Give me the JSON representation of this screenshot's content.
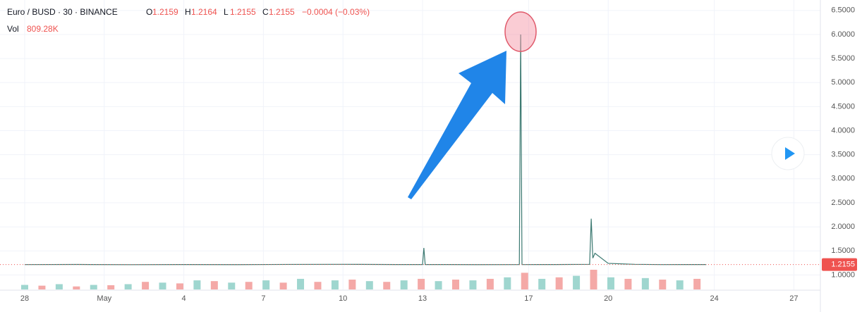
{
  "chart_data": {
    "type": "line",
    "title": "Euro / BUSD · 30 · BINANCE",
    "ohlc": [
      {
        "label": "O",
        "value": "1.2159"
      },
      {
        "label": "H",
        "value": "1.2164"
      },
      {
        "label": "L",
        "value": "1.2155"
      },
      {
        "label": "C",
        "value": "1.2155"
      }
    ],
    "change": "−0.0004 (−0.03%)",
    "volume_label": "Vol",
    "volume_value": "809.28K",
    "x": [
      0,
      2,
      4,
      6,
      8,
      10,
      12,
      14,
      15,
      15.05,
      15.1,
      17,
      18.65,
      18.7,
      18.75,
      20,
      21.3,
      21.36,
      21.42,
      21.5,
      22,
      23,
      24,
      25,
      25.7
    ],
    "series": [
      {
        "name": "Euro / BUSD",
        "color": "#3d7a72",
        "values": [
          1.215,
          1.217,
          1.213,
          1.216,
          1.214,
          1.218,
          1.22,
          1.216,
          1.216,
          1.56,
          1.216,
          1.214,
          1.215,
          6.0,
          1.215,
          1.216,
          1.22,
          2.17,
          1.35,
          1.45,
          1.24,
          1.22,
          1.215,
          1.216,
          1.2155
        ]
      }
    ],
    "volume": {
      "colors": [
        "#9fd6cf",
        "#f4a9a7"
      ],
      "x": [
        0,
        0.65,
        1.3,
        1.95,
        2.6,
        3.25,
        3.9,
        4.55,
        5.2,
        5.85,
        6.5,
        7.15,
        7.8,
        8.45,
        9.1,
        9.75,
        10.4,
        11.05,
        11.7,
        12.35,
        13,
        13.65,
        14.3,
        14.95,
        15.6,
        16.25,
        16.9,
        17.55,
        18.2,
        18.85,
        19.5,
        20.15,
        20.8,
        21.45,
        22.1,
        22.75,
        23.4,
        24.05,
        24.7,
        25.35
      ],
      "values": [
        300,
        250,
        350,
        200,
        300,
        280,
        350,
        500,
        450,
        400,
        600,
        550,
        450,
        500,
        600,
        450,
        700,
        500,
        600,
        650,
        550,
        500,
        600,
        700,
        550,
        650,
        600,
        700,
        800,
        1100,
        700,
        800,
        900,
        1300,
        800,
        700,
        750,
        650,
        600,
        700
      ]
    },
    "xlim": [
      -0.9,
      30.8
    ],
    "xticks": [
      {
        "value": 0,
        "label": "28"
      },
      {
        "value": 3,
        "label": "May"
      },
      {
        "value": 6,
        "label": "4"
      },
      {
        "value": 9,
        "label": "7"
      },
      {
        "value": 12,
        "label": "10"
      },
      {
        "value": 15,
        "label": "13"
      },
      {
        "value": 19,
        "label": "17"
      },
      {
        "value": 22,
        "label": "20"
      },
      {
        "value": 26,
        "label": "24"
      },
      {
        "value": 29,
        "label": "27"
      }
    ],
    "ylim": [
      0.8,
      6.6
    ],
    "yticks": [
      {
        "value": 1,
        "label": "1.0000"
      },
      {
        "value": 1.5,
        "label": "1.5000"
      },
      {
        "value": 2,
        "label": "2.0000"
      },
      {
        "value": 2.5,
        "label": "2.5000"
      },
      {
        "value": 3,
        "label": "3.0000"
      },
      {
        "value": 3.5,
        "label": "3.5000"
      },
      {
        "value": 4,
        "label": "4.0000"
      },
      {
        "value": 4.5,
        "label": "4.5000"
      },
      {
        "value": 5,
        "label": "5.0000"
      },
      {
        "value": 5.5,
        "label": "5.5000"
      },
      {
        "value": 6,
        "label": "6.0000"
      },
      {
        "value": 6.5,
        "label": "6.5000"
      }
    ],
    "last_price": {
      "value": 1.2155,
      "label": "1.2155"
    },
    "grid": true
  }
}
